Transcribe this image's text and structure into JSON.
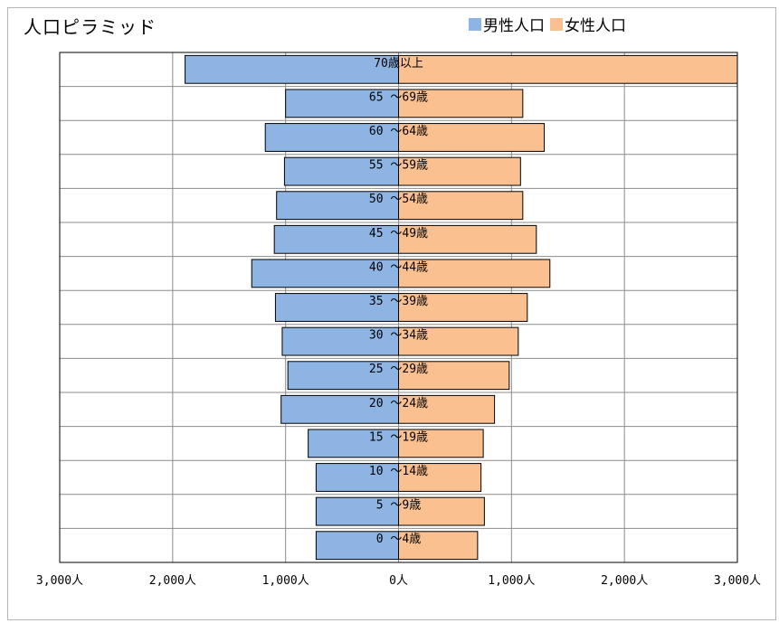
{
  "chart_data": {
    "type": "bar",
    "orientation": "horizontal",
    "title": "人口ピラミッド",
    "categories": [
      "70歳以上",
      "65 ～69歳",
      "60 ～64歳",
      "55 ～59歳",
      "50 ～54歳",
      "45 ～49歳",
      "40 ～44歳",
      "35 ～39歳",
      "30 ～34歳",
      "25 ～29歳",
      "20 ～24歳",
      "15 ～19歳",
      "10 ～14歳",
      "5 ～9歳",
      "0 ～4歳"
    ],
    "series": [
      {
        "name": "男性人口",
        "color": "#8eb4e3",
        "values": [
          1890,
          1000,
          1180,
          1010,
          1080,
          1100,
          1300,
          1090,
          1030,
          980,
          1040,
          800,
          730,
          730,
          730
        ]
      },
      {
        "name": "女性人口",
        "color": "#fac090",
        "values": [
          3000,
          1100,
          1290,
          1080,
          1100,
          1220,
          1340,
          1140,
          1060,
          980,
          850,
          750,
          730,
          760,
          700
        ]
      }
    ],
    "xlim": [
      -3000,
      3000
    ],
    "xticks": [
      {
        "value": -3000,
        "label": "3,000人"
      },
      {
        "value": -2000,
        "label": "2,000人"
      },
      {
        "value": -1000,
        "label": "1,000人"
      },
      {
        "value": 0,
        "label": "0人"
      },
      {
        "value": 1000,
        "label": "1,000人"
      },
      {
        "value": 2000,
        "label": "2,000人"
      },
      {
        "value": 3000,
        "label": "3,000人"
      }
    ],
    "grid": true,
    "legend_position": "top-right"
  }
}
